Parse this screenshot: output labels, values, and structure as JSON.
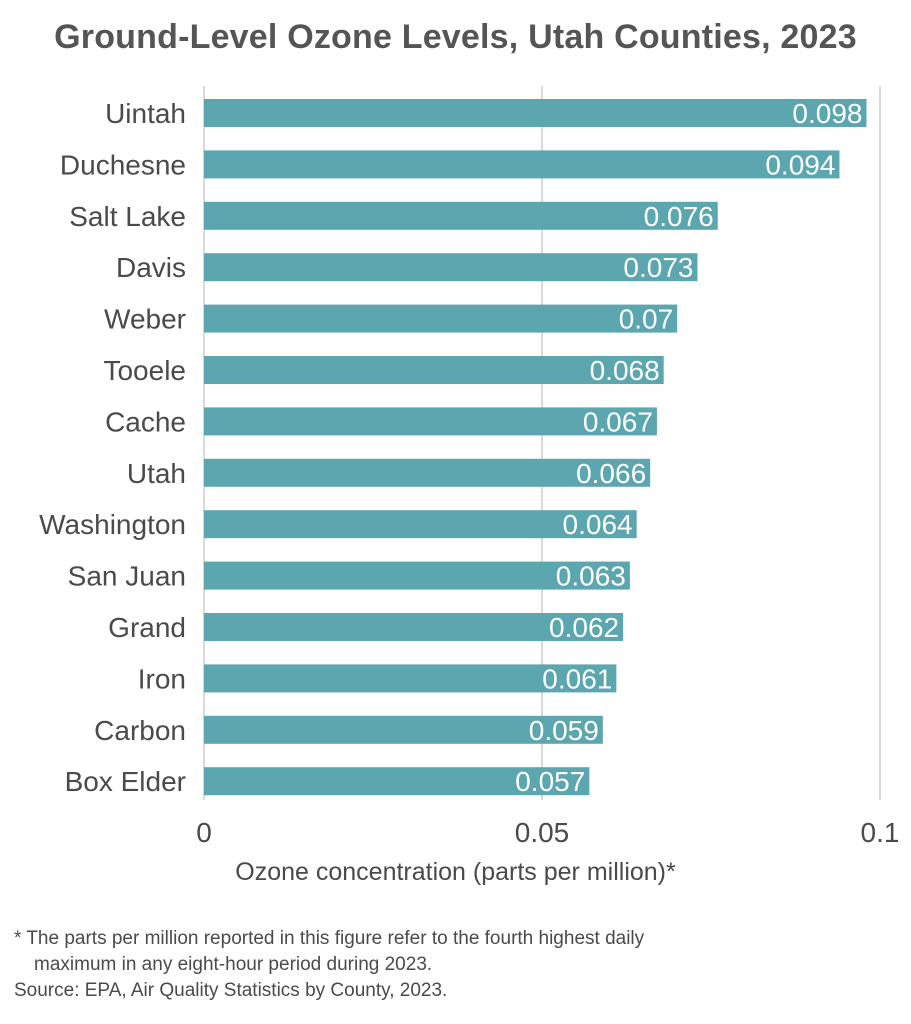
{
  "chart_data": {
    "type": "bar",
    "orientation": "horizontal",
    "title": "Ground-Level Ozone Levels, Utah Counties, 2023",
    "xlabel": "Ozone concentration (parts per million)*",
    "ylabel": "",
    "categories": [
      "Uintah",
      "Duchesne",
      "Salt Lake",
      "Davis",
      "Weber",
      "Tooele",
      "Cache",
      "Utah",
      "Washington",
      "San Juan",
      "Grand",
      "Iron",
      "Carbon",
      "Box Elder"
    ],
    "values": [
      0.098,
      0.094,
      0.076,
      0.073,
      0.07,
      0.068,
      0.067,
      0.066,
      0.064,
      0.063,
      0.062,
      0.061,
      0.059,
      0.057
    ],
    "value_labels": [
      "0.098",
      "0.094",
      "0.076",
      "0.073",
      "0.07",
      "0.068",
      "0.067",
      "0.066",
      "0.064",
      "0.063",
      "0.062",
      "0.061",
      "0.059",
      "0.057"
    ],
    "xticks": [
      0,
      0.05,
      0.1
    ],
    "xtick_labels": [
      "0",
      "0.05",
      "0.1"
    ],
    "xlim": [
      0,
      0.1
    ],
    "grid": true,
    "legend": "none",
    "bar_color": "#5ba6af",
    "grid_color": "#d9d9d9"
  },
  "footnote": {
    "line1": "* The parts per million reported in this figure refer to the fourth highest daily",
    "line2": "maximum in any eight-hour period during 2023.",
    "source": "Source: EPA, Air Quality Statistics by County, 2023."
  }
}
